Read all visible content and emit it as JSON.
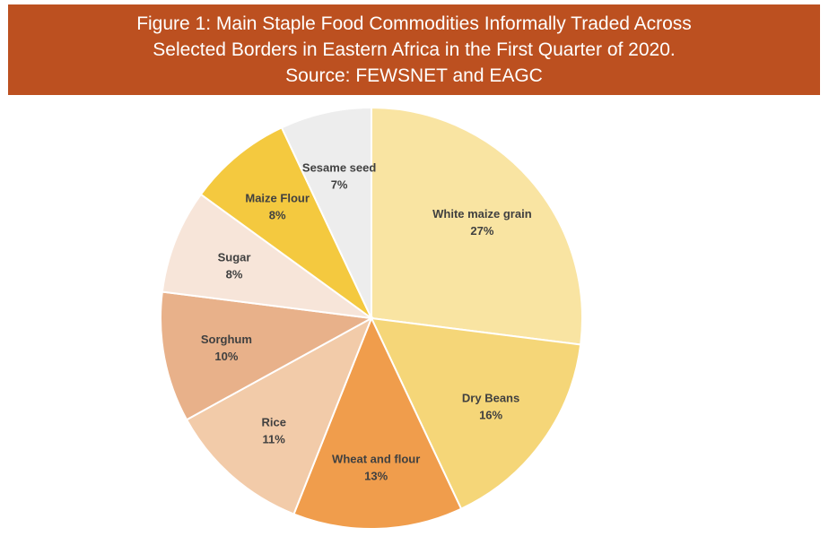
{
  "title_lines": [
    "Figure 1: Main Staple Food Commodities Informally Traded Across",
    "Selected Borders in Eastern Africa in the First Quarter of 2020.",
    "Source: FEWSNET and EAGC"
  ],
  "chart_data": {
    "type": "pie",
    "title": "Figure 1: Main Staple Food Commodities Informally Traded Across Selected Borders in Eastern Africa in the First Quarter of 2020. Source: FEWSNET and EAGC",
    "start": "top, clockwise",
    "slices": [
      {
        "label": "White maize grain",
        "value": 27,
        "text": "27%",
        "color": "#F9E4A2"
      },
      {
        "label": "Dry Beans",
        "value": 16,
        "text": "16%",
        "color": "#F5D678"
      },
      {
        "label": "Wheat and flour",
        "value": 13,
        "text": "13%",
        "color": "#F09D4C"
      },
      {
        "label": "Rice",
        "value": 11,
        "text": "11%",
        "color": "#F2CBA9"
      },
      {
        "label": "Sorghum",
        "value": 10,
        "text": "10%",
        "color": "#E8B18A"
      },
      {
        "label": "Sugar",
        "value": 8,
        "text": "8%",
        "color": "#F7E5D9"
      },
      {
        "label": "Maize Flour",
        "value": 8,
        "text": "8%",
        "color": "#F4C93F"
      },
      {
        "label": "Sesame seed",
        "value": 7,
        "text": "7%",
        "color": "#EDEDED"
      }
    ]
  }
}
